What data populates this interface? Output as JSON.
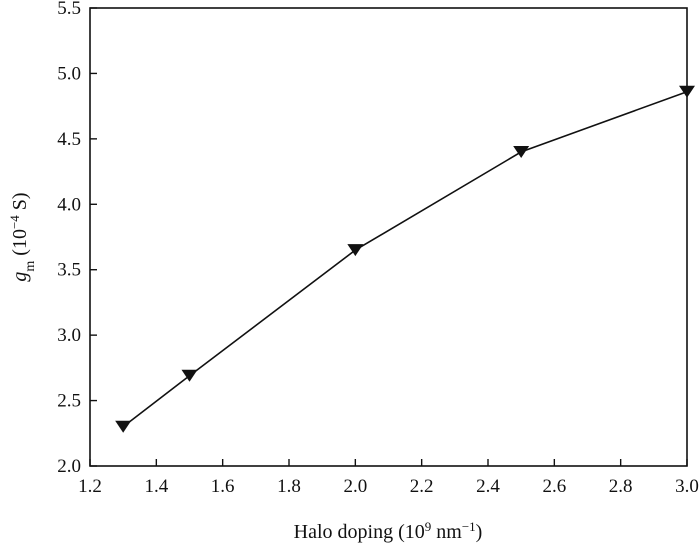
{
  "chart_data": {
    "type": "line",
    "title": "",
    "xlabel": {
      "main": "Halo doping (10",
      "sup1": "9",
      "mid": " nm",
      "sup2": "−1",
      "end": ")"
    },
    "ylabel": {
      "main": "g",
      "sub": "m",
      "mid": " (10",
      "sup": "−4",
      "end": " S)"
    },
    "xlim": [
      1.2,
      3.0
    ],
    "ylim": [
      2.0,
      5.5
    ],
    "xticks": [
      "1.2",
      "1.4",
      "1.6",
      "1.8",
      "2.0",
      "2.2",
      "2.4",
      "2.6",
      "2.8",
      "3.0"
    ],
    "yticks": [
      "2.0",
      "2.5",
      "3.0",
      "3.5",
      "4.0",
      "4.5",
      "5.0",
      "5.5"
    ],
    "marker": "down-triangle",
    "grid": false,
    "legend": "none",
    "line_color": "#111111",
    "series": [
      {
        "x": [
          1.3,
          1.5,
          2.0,
          2.5,
          3.0
        ],
        "y": [
          2.3,
          2.69,
          3.65,
          4.4,
          4.86
        ]
      }
    ]
  }
}
